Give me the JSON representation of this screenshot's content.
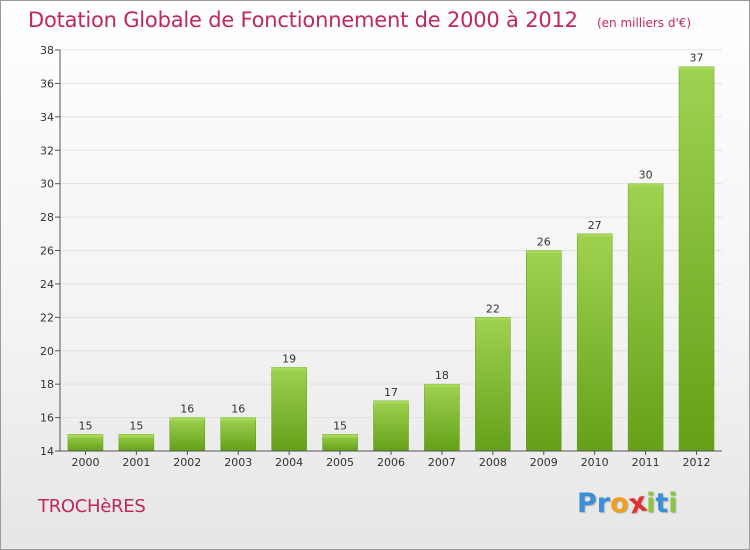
{
  "header": {
    "title": "Dotation Globale de Fonctionnement de 2000 à 2012",
    "subtitle": "(en milliers d'€)"
  },
  "footer": {
    "commune": "TROCHèRES",
    "logo_letters": [
      {
        "ch": "P",
        "color": "#3a8fd6"
      },
      {
        "ch": "r",
        "color": "#3a8fd6"
      },
      {
        "ch": "o",
        "color": "#f0a020"
      },
      {
        "ch": "x",
        "color": "#e03030"
      },
      {
        "ch": "i",
        "color": "#8cc63f"
      },
      {
        "ch": "t",
        "color": "#3a8fd6"
      },
      {
        "ch": "i",
        "color": "#8cc63f"
      }
    ]
  },
  "chart_data": {
    "type": "bar",
    "title": "Dotation Globale de Fonctionnement de 2000 à 2012",
    "subtitle": "(en milliers d'€)",
    "xlabel": "",
    "ylabel": "",
    "categories": [
      "2000",
      "2001",
      "2002",
      "2003",
      "2004",
      "2005",
      "2006",
      "2007",
      "2008",
      "2009",
      "2010",
      "2011",
      "2012"
    ],
    "values": [
      15,
      15,
      16,
      16,
      19,
      15,
      17,
      18,
      22,
      26,
      27,
      30,
      37
    ],
    "ylim": [
      14,
      38
    ],
    "yticks": [
      14,
      16,
      18,
      20,
      22,
      24,
      26,
      28,
      30,
      32,
      34,
      36,
      38
    ],
    "grid": true,
    "bar_color": "#7cb82e",
    "bar_color_light": "#a6d85a",
    "label_color": "#333333",
    "axis_color": "#555555"
  }
}
